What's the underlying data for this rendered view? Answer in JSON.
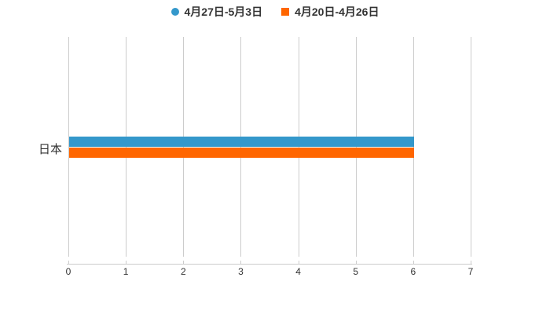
{
  "chart_data": {
    "type": "bar",
    "orientation": "horizontal",
    "title": "",
    "categories": [
      "日本"
    ],
    "series": [
      {
        "name": "4月27日-5月3日",
        "color": "#3498cb",
        "legend_marker": "circle",
        "values": [
          6
        ]
      },
      {
        "name": "4月20日-4月26日",
        "color": "#ff6600",
        "legend_marker": "square",
        "values": [
          6
        ]
      }
    ],
    "xlim": [
      0,
      7
    ],
    "x_ticks": [
      0,
      1,
      2,
      3,
      4,
      5,
      6,
      7
    ],
    "grid": true,
    "legend_position": "top"
  },
  "legend": {
    "items": [
      {
        "label": "4月27日-5月3日",
        "color": "#3498cb",
        "marker": "circle"
      },
      {
        "label": "4月20日-4月26日",
        "color": "#ff6600",
        "marker": "square"
      }
    ]
  },
  "colors": {
    "grid": "#cccccc",
    "axis": "#cccccc",
    "text": "#333333",
    "background": "#ffffff"
  }
}
